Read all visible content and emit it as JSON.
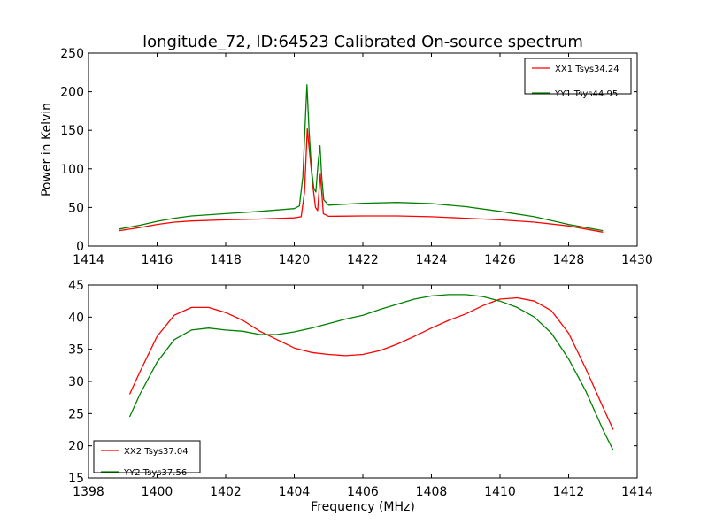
{
  "chart_data": [
    {
      "type": "line",
      "title": "longitude_72, ID:64523 Calibrated On-source spectrum",
      "xlabel": "",
      "ylabel": "Power in Kelvin",
      "xlim": [
        1414,
        1430
      ],
      "ylim": [
        0,
        250
      ],
      "xticks": [
        "1414",
        "1416",
        "1418",
        "1420",
        "1422",
        "1424",
        "1426",
        "1428",
        "1430"
      ],
      "yticks": [
        "0",
        "50",
        "100",
        "150",
        "200",
        "250"
      ],
      "legend_position": "top-right",
      "grid": false,
      "series": [
        {
          "name": "XX1 Tsys34.24",
          "color": "#ff0000",
          "points": [
            [
              1414.9,
              20
            ],
            [
              1415.5,
              24
            ],
            [
              1416,
              28
            ],
            [
              1416.5,
              31
            ],
            [
              1417,
              32.5
            ],
            [
              1418,
              34
            ],
            [
              1419,
              35
            ],
            [
              1420,
              36.5
            ],
            [
              1420.2,
              38
            ],
            [
              1420.3,
              70
            ],
            [
              1420.38,
              152
            ],
            [
              1420.45,
              120
            ],
            [
              1420.55,
              75
            ],
            [
              1420.62,
              50
            ],
            [
              1420.68,
              46
            ],
            [
              1420.72,
              70
            ],
            [
              1420.76,
              93
            ],
            [
              1420.8,
              70
            ],
            [
              1420.85,
              42
            ],
            [
              1421,
              38.5
            ],
            [
              1422,
              39
            ],
            [
              1423,
              39
            ],
            [
              1424,
              38
            ],
            [
              1425,
              36
            ],
            [
              1426,
              34
            ],
            [
              1427,
              31
            ],
            [
              1428,
              26
            ],
            [
              1428.5,
              22
            ],
            [
              1429,
              18
            ]
          ]
        },
        {
          "name": "YY1 Tsys44.95",
          "color": "#008000",
          "points": [
            [
              1414.9,
              22
            ],
            [
              1415.5,
              27
            ],
            [
              1416,
              32
            ],
            [
              1416.5,
              36
            ],
            [
              1417,
              39
            ],
            [
              1418,
              42
            ],
            [
              1419,
              45
            ],
            [
              1420,
              48.5
            ],
            [
              1420.15,
              52
            ],
            [
              1420.25,
              90
            ],
            [
              1420.32,
              160
            ],
            [
              1420.37,
              209
            ],
            [
              1420.43,
              150
            ],
            [
              1420.5,
              100
            ],
            [
              1420.57,
              75
            ],
            [
              1420.63,
              70
            ],
            [
              1420.7,
              110
            ],
            [
              1420.75,
              130
            ],
            [
              1420.8,
              90
            ],
            [
              1420.86,
              60
            ],
            [
              1421,
              53
            ],
            [
              1422,
              55.5
            ],
            [
              1423,
              56.5
            ],
            [
              1424,
              55
            ],
            [
              1425,
              51
            ],
            [
              1426,
              45
            ],
            [
              1427,
              38
            ],
            [
              1428,
              28
            ],
            [
              1429,
              20
            ]
          ]
        }
      ]
    },
    {
      "type": "line",
      "title": "",
      "xlabel": "Frequency (MHz)",
      "ylabel": "",
      "xlim": [
        1398,
        1414
      ],
      "ylim": [
        15,
        45
      ],
      "xticks": [
        "1398",
        "1400",
        "1402",
        "1404",
        "1406",
        "1408",
        "1410",
        "1412",
        "1414"
      ],
      "yticks": [
        "15",
        "20",
        "25",
        "30",
        "35",
        "40",
        "45"
      ],
      "legend_position": "bottom-left",
      "grid": false,
      "series": [
        {
          "name": "XX2 Tsys37.04",
          "color": "#ff0000",
          "points": [
            [
              1399.2,
              28
            ],
            [
              1399.5,
              31.5
            ],
            [
              1400,
              37
            ],
            [
              1400.5,
              40.3
            ],
            [
              1401,
              41.5
            ],
            [
              1401.5,
              41.5
            ],
            [
              1402,
              40.7
            ],
            [
              1402.5,
              39.5
            ],
            [
              1403,
              37.8
            ],
            [
              1403.5,
              36.5
            ],
            [
              1404,
              35.2
            ],
            [
              1404.5,
              34.5
            ],
            [
              1405,
              34.2
            ],
            [
              1405.5,
              34
            ],
            [
              1406,
              34.2
            ],
            [
              1406.5,
              34.8
            ],
            [
              1407,
              35.8
            ],
            [
              1407.5,
              37
            ],
            [
              1408,
              38.3
            ],
            [
              1408.5,
              39.5
            ],
            [
              1409,
              40.5
            ],
            [
              1409.5,
              41.8
            ],
            [
              1410,
              42.8
            ],
            [
              1410.5,
              43
            ],
            [
              1411,
              42.5
            ],
            [
              1411.5,
              41
            ],
            [
              1412,
              37.5
            ],
            [
              1412.5,
              32
            ],
            [
              1413,
              26
            ],
            [
              1413.3,
              22.5
            ]
          ]
        },
        {
          "name": "YY2 Tsys37.56",
          "color": "#008000",
          "points": [
            [
              1399.2,
              24.5
            ],
            [
              1399.5,
              28
            ],
            [
              1400,
              33
            ],
            [
              1400.5,
              36.5
            ],
            [
              1401,
              38
            ],
            [
              1401.5,
              38.3
            ],
            [
              1402,
              38
            ],
            [
              1402.5,
              37.8
            ],
            [
              1403,
              37.3
            ],
            [
              1403.5,
              37.3
            ],
            [
              1404,
              37.7
            ],
            [
              1404.5,
              38.3
            ],
            [
              1405,
              39
            ],
            [
              1405.5,
              39.7
            ],
            [
              1406,
              40.3
            ],
            [
              1406.5,
              41.2
            ],
            [
              1407,
              42
            ],
            [
              1407.5,
              42.8
            ],
            [
              1408,
              43.3
            ],
            [
              1408.5,
              43.5
            ],
            [
              1409,
              43.5
            ],
            [
              1409.5,
              43.2
            ],
            [
              1410,
              42.5
            ],
            [
              1410.5,
              41.5
            ],
            [
              1411,
              40
            ],
            [
              1411.5,
              37.5
            ],
            [
              1412,
              33.5
            ],
            [
              1412.5,
              28.5
            ],
            [
              1413,
              22.5
            ],
            [
              1413.3,
              19.3
            ]
          ]
        }
      ]
    }
  ]
}
